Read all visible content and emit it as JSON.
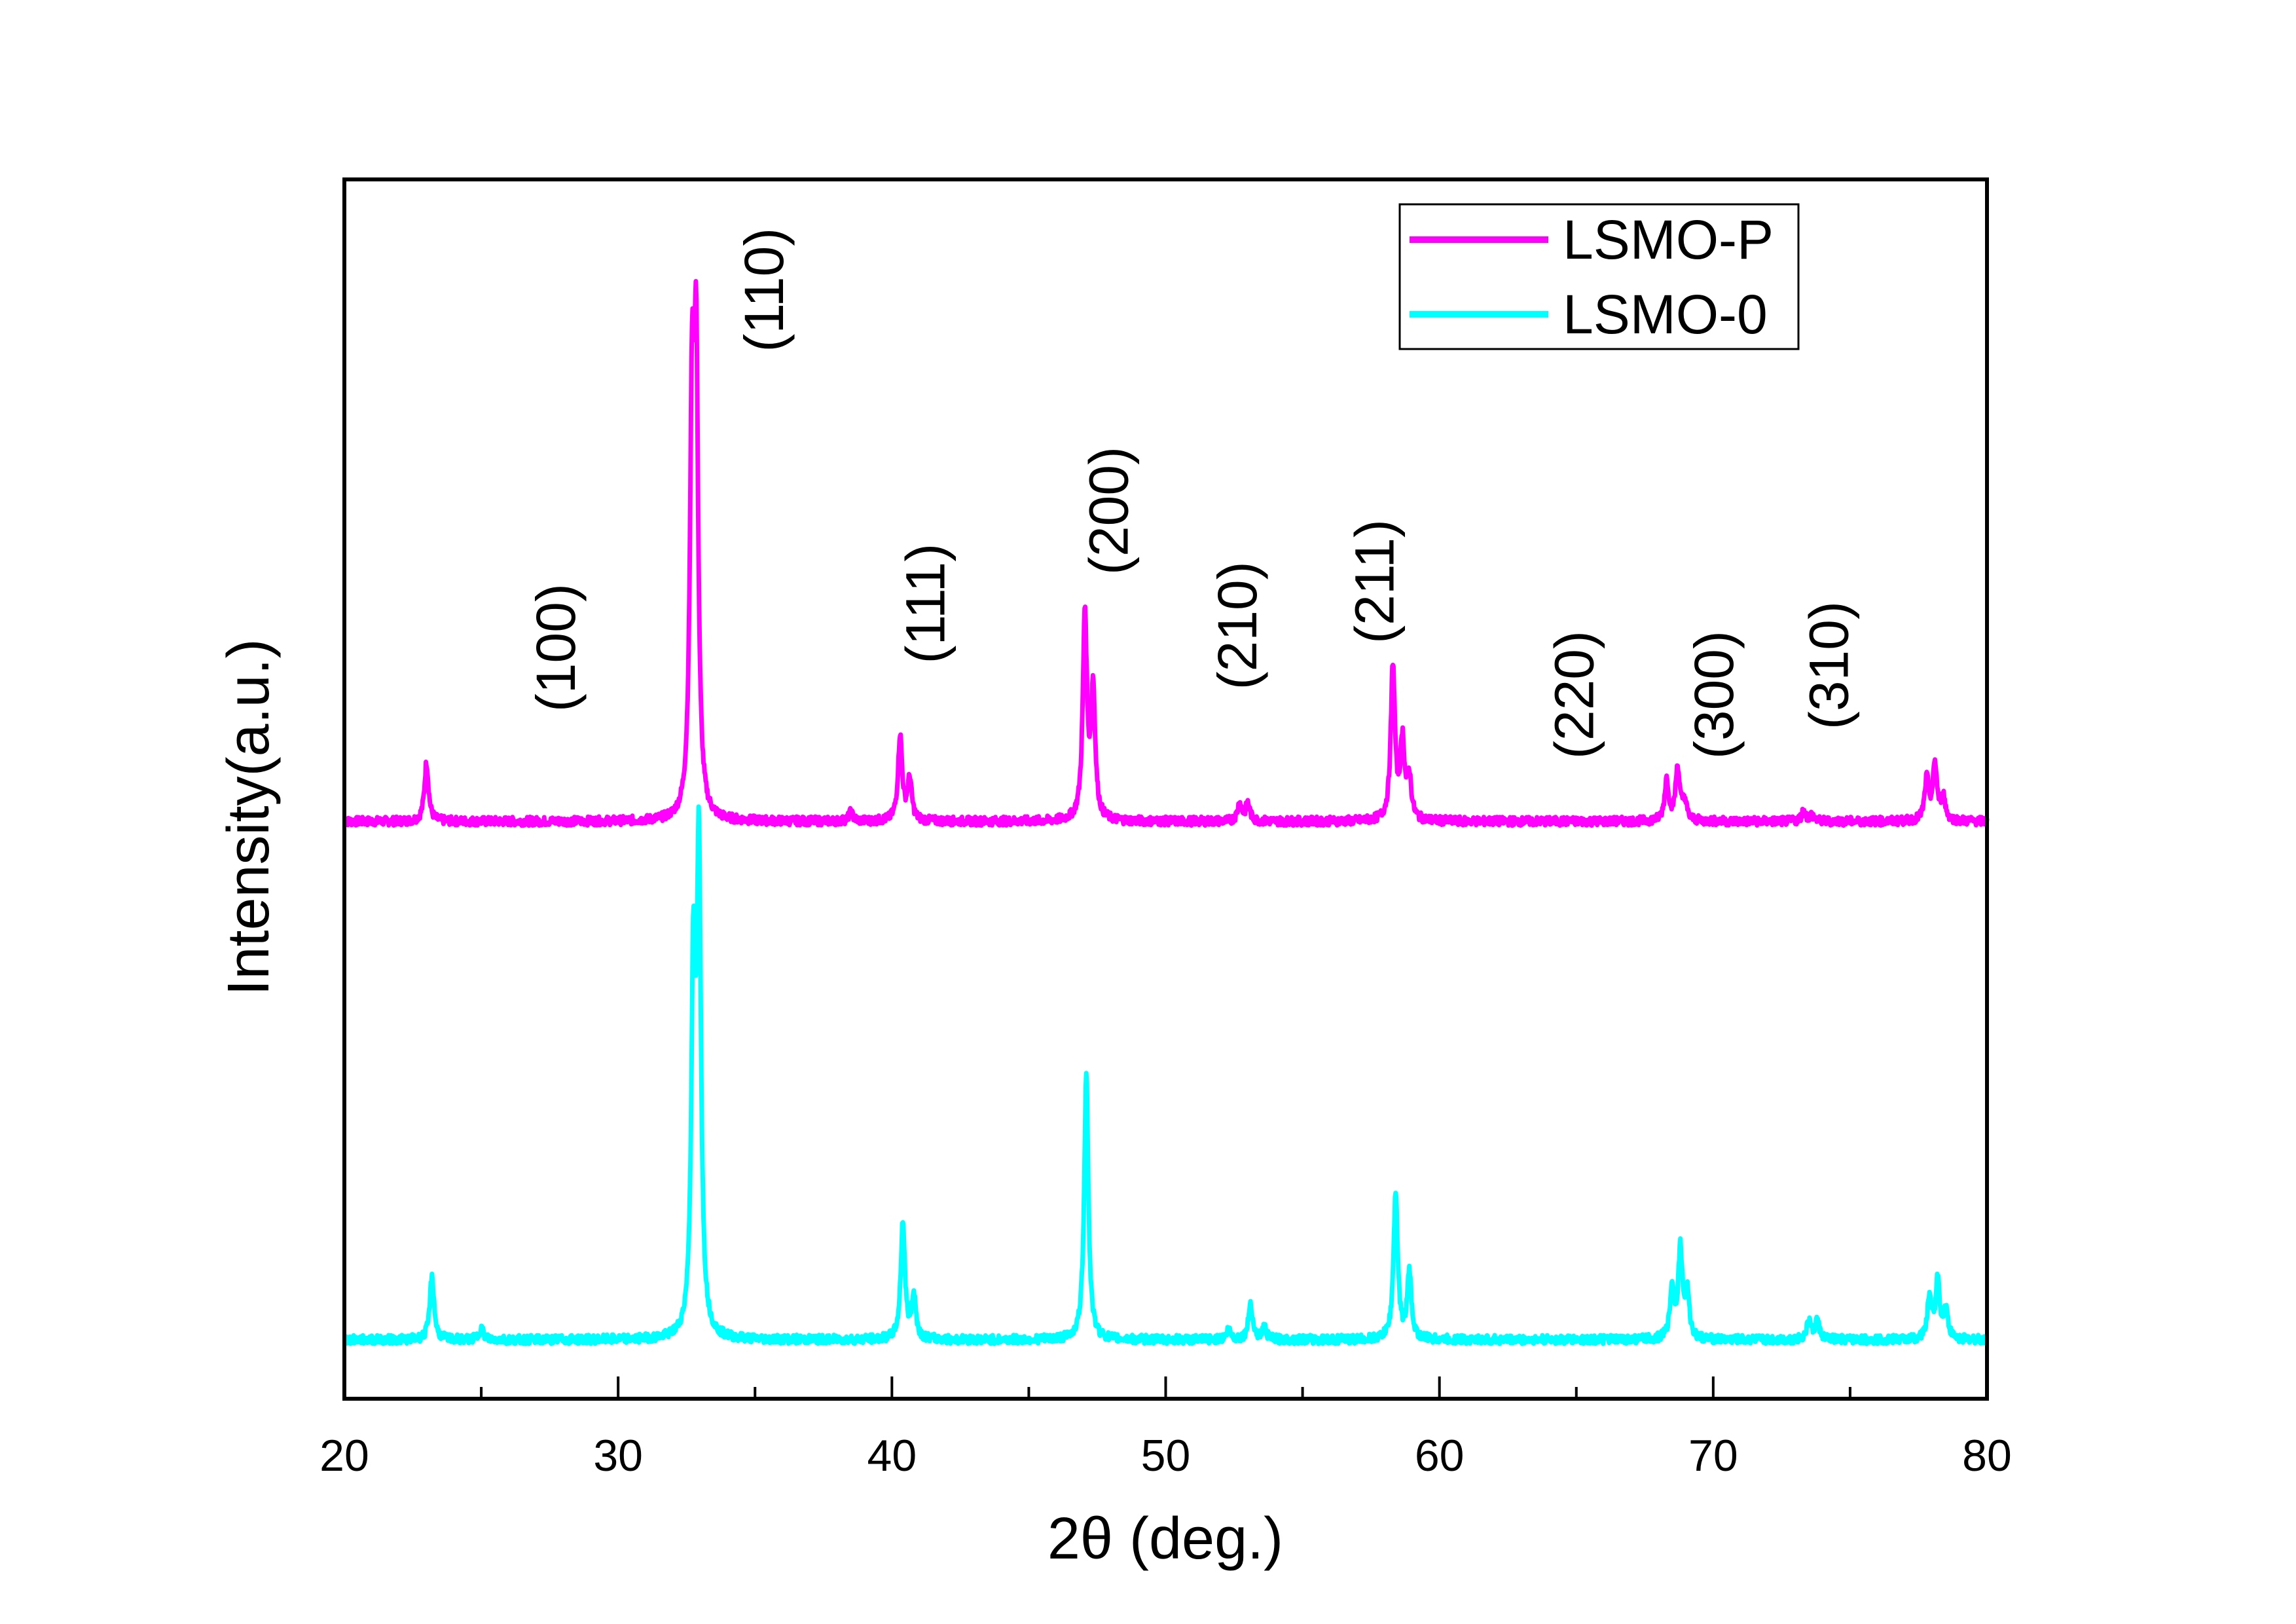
{
  "chart_data": {
    "type": "line",
    "title": "",
    "xlabel": "2θ (deg.)",
    "ylabel": "Intensity(a.u.)",
    "xlim": [
      20,
      80
    ],
    "ylim": [
      0,
      828
    ],
    "x_major_ticks": [
      20,
      30,
      40,
      50,
      60,
      70,
      80
    ],
    "x_tick_labels": [
      "20",
      "30",
      "40",
      "50",
      "60",
      "70",
      "80"
    ],
    "x_minor_ticks": [
      25,
      35,
      45,
      55,
      65,
      75
    ],
    "y_ticks_shown": false,
    "grid": false,
    "legend_position": "top-right",
    "series": [
      {
        "name": "LSMO-P",
        "color": "#ff00ff",
        "baseline": 392,
        "peaks": [
          {
            "x": 23.0,
            "y": 432
          },
          {
            "x": 32.7,
            "y": 655
          },
          {
            "x": 32.85,
            "y": 685
          },
          {
            "x": 38.5,
            "y": 398
          },
          {
            "x": 40.3,
            "y": 450
          },
          {
            "x": 40.65,
            "y": 420
          },
          {
            "x": 47.05,
            "y": 532
          },
          {
            "x": 47.35,
            "y": 480
          },
          {
            "x": 52.7,
            "y": 404
          },
          {
            "x": 53.0,
            "y": 404
          },
          {
            "x": 58.3,
            "y": 497
          },
          {
            "x": 58.65,
            "y": 445
          },
          {
            "x": 58.9,
            "y": 420
          },
          {
            "x": 68.3,
            "y": 420
          },
          {
            "x": 68.7,
            "y": 428
          },
          {
            "x": 68.95,
            "y": 405
          },
          {
            "x": 73.3,
            "y": 399
          },
          {
            "x": 73.6,
            "y": 396
          },
          {
            "x": 77.8,
            "y": 420
          },
          {
            "x": 78.1,
            "y": 430
          },
          {
            "x": 78.4,
            "y": 408
          }
        ]
      },
      {
        "name": "LSMO-0",
        "color": "#00ffff",
        "baseline": 40,
        "peaks": [
          {
            "x": 23.2,
            "y": 84
          },
          {
            "x": 25.0,
            "y": 48
          },
          {
            "x": 32.75,
            "y": 280
          },
          {
            "x": 32.95,
            "y": 360
          },
          {
            "x": 40.4,
            "y": 120
          },
          {
            "x": 40.8,
            "y": 70
          },
          {
            "x": 47.1,
            "y": 222
          },
          {
            "x": 52.3,
            "y": 47
          },
          {
            "x": 53.1,
            "y": 65
          },
          {
            "x": 53.6,
            "y": 48
          },
          {
            "x": 58.4,
            "y": 140
          },
          {
            "x": 58.9,
            "y": 85
          },
          {
            "x": 68.5,
            "y": 75
          },
          {
            "x": 68.8,
            "y": 100
          },
          {
            "x": 69.05,
            "y": 70
          },
          {
            "x": 73.5,
            "y": 53
          },
          {
            "x": 73.8,
            "y": 53
          },
          {
            "x": 77.9,
            "y": 68
          },
          {
            "x": 78.2,
            "y": 80
          },
          {
            "x": 78.5,
            "y": 60
          }
        ]
      }
    ],
    "annotations": [
      {
        "text": "(100)",
        "x": 27.7,
        "y": 510
      },
      {
        "text": "(110)",
        "x": 35.3,
        "y": 753
      },
      {
        "text": "(111)",
        "x": 41.2,
        "y": 540
      },
      {
        "text": "(200)",
        "x": 47.9,
        "y": 603
      },
      {
        "text": "(210)",
        "x": 52.6,
        "y": 525
      },
      {
        "text": "(211)",
        "x": 57.6,
        "y": 555
      },
      {
        "text": "(220)",
        "x": 64.9,
        "y": 478
      },
      {
        "text": "(300)",
        "x": 70.0,
        "y": 478
      },
      {
        "text": "(310)",
        "x": 74.2,
        "y": 498
      }
    ]
  }
}
